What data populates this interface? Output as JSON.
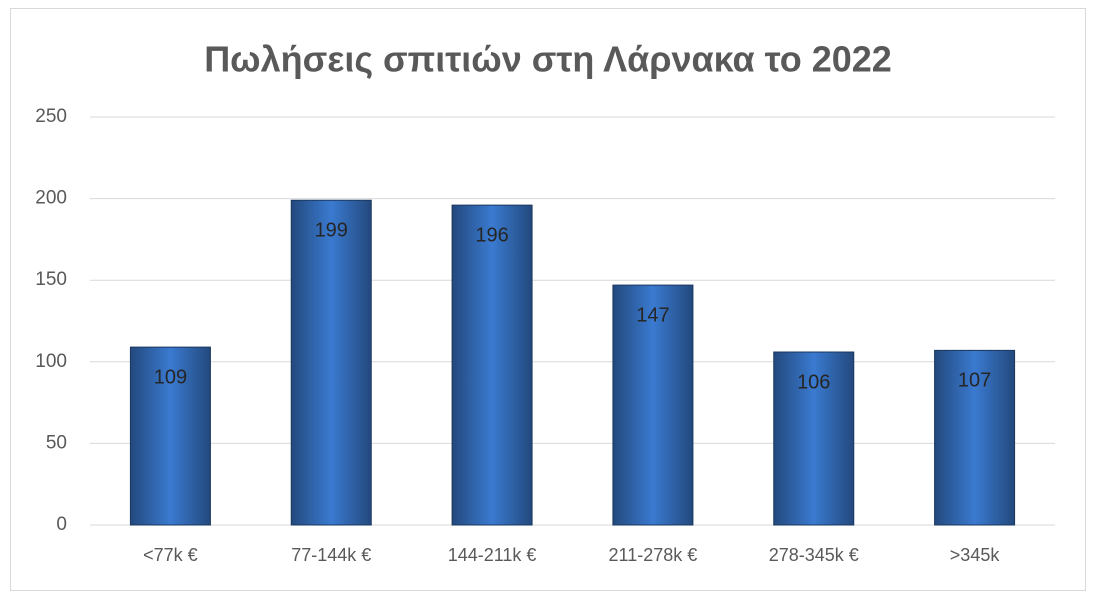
{
  "chart_data": {
    "type": "bar",
    "title": "Πωλήσεις σπιτιών στη Λάρνακα το 2022",
    "categories": [
      "<77k €",
      "77-144k €",
      "144-211k €",
      "211-278k €",
      "278-345k €",
      ">345k"
    ],
    "values": [
      109,
      199,
      196,
      147,
      106,
      107
    ],
    "color": "#3a7ad0",
    "ylim": [
      0,
      250
    ],
    "yticks": [
      0,
      50,
      100,
      150,
      200,
      250
    ],
    "grid": true
  }
}
